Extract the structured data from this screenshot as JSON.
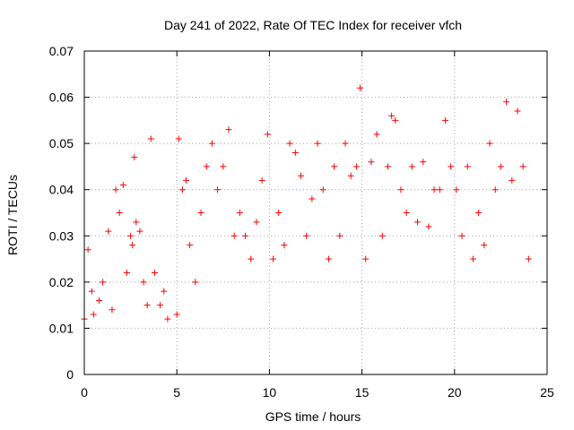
{
  "chart_data": {
    "type": "scatter",
    "title": "Day 241 of 2022, Rate Of TEC Index for receiver vfch",
    "xlabel": "GPS time / hours",
    "ylabel": "ROTI / TECUs",
    "xlim": [
      0,
      25
    ],
    "ylim": [
      0,
      0.07
    ],
    "x_ticks": [
      0,
      5,
      10,
      15,
      20,
      25
    ],
    "x_tick_labels": [
      "0",
      "5",
      "10",
      "15",
      "20",
      "25"
    ],
    "y_ticks": [
      0,
      0.01,
      0.02,
      0.03,
      0.04,
      0.05,
      0.06,
      0.07
    ],
    "y_tick_labels": [
      "0",
      "0.01",
      "0.02",
      "0.03",
      "0.04",
      "0.05",
      "0.06",
      "0.07"
    ],
    "grid": true,
    "marker": "+",
    "marker_color": "#ff0000",
    "series": [
      {
        "name": "ROTI",
        "x": [
          0.0,
          0.2,
          0.4,
          0.5,
          0.8,
          1.0,
          1.3,
          1.5,
          1.7,
          1.9,
          2.1,
          2.3,
          2.5,
          2.6,
          2.7,
          2.8,
          3.0,
          3.2,
          3.4,
          3.6,
          3.8,
          4.1,
          4.3,
          4.5,
          5.0,
          5.1,
          5.3,
          5.5,
          5.7,
          6.0,
          6.3,
          6.6,
          6.9,
          7.2,
          7.5,
          7.8,
          8.1,
          8.4,
          8.7,
          9.0,
          9.3,
          9.6,
          9.9,
          10.2,
          10.5,
          10.8,
          11.1,
          11.4,
          11.7,
          12.0,
          12.3,
          12.6,
          12.9,
          13.2,
          13.5,
          13.8,
          14.1,
          14.4,
          14.7,
          14.9,
          15.2,
          15.5,
          15.8,
          16.1,
          16.4,
          16.6,
          16.8,
          17.1,
          17.4,
          17.7,
          18.0,
          18.3,
          18.6,
          18.9,
          19.2,
          19.5,
          19.8,
          20.1,
          20.4,
          20.7,
          21.0,
          21.3,
          21.6,
          21.9,
          22.2,
          22.5,
          22.8,
          23.1,
          23.4,
          23.7,
          24.0
        ],
        "y": [
          0.012,
          0.027,
          0.018,
          0.013,
          0.016,
          0.02,
          0.031,
          0.014,
          0.04,
          0.035,
          0.041,
          0.022,
          0.03,
          0.028,
          0.047,
          0.033,
          0.031,
          0.02,
          0.015,
          0.051,
          0.022,
          0.015,
          0.018,
          0.012,
          0.013,
          0.051,
          0.04,
          0.042,
          0.028,
          0.02,
          0.035,
          0.045,
          0.05,
          0.04,
          0.045,
          0.053,
          0.03,
          0.035,
          0.03,
          0.025,
          0.033,
          0.042,
          0.052,
          0.025,
          0.035,
          0.028,
          0.05,
          0.048,
          0.043,
          0.03,
          0.038,
          0.05,
          0.04,
          0.025,
          0.045,
          0.03,
          0.05,
          0.043,
          0.045,
          0.062,
          0.025,
          0.046,
          0.052,
          0.03,
          0.045,
          0.056,
          0.055,
          0.04,
          0.035,
          0.045,
          0.033,
          0.046,
          0.032,
          0.04,
          0.04,
          0.055,
          0.045,
          0.04,
          0.03,
          0.045,
          0.025,
          0.035,
          0.028,
          0.05,
          0.04,
          0.045,
          0.059,
          0.042,
          0.057,
          0.045,
          0.025
        ]
      }
    ]
  }
}
